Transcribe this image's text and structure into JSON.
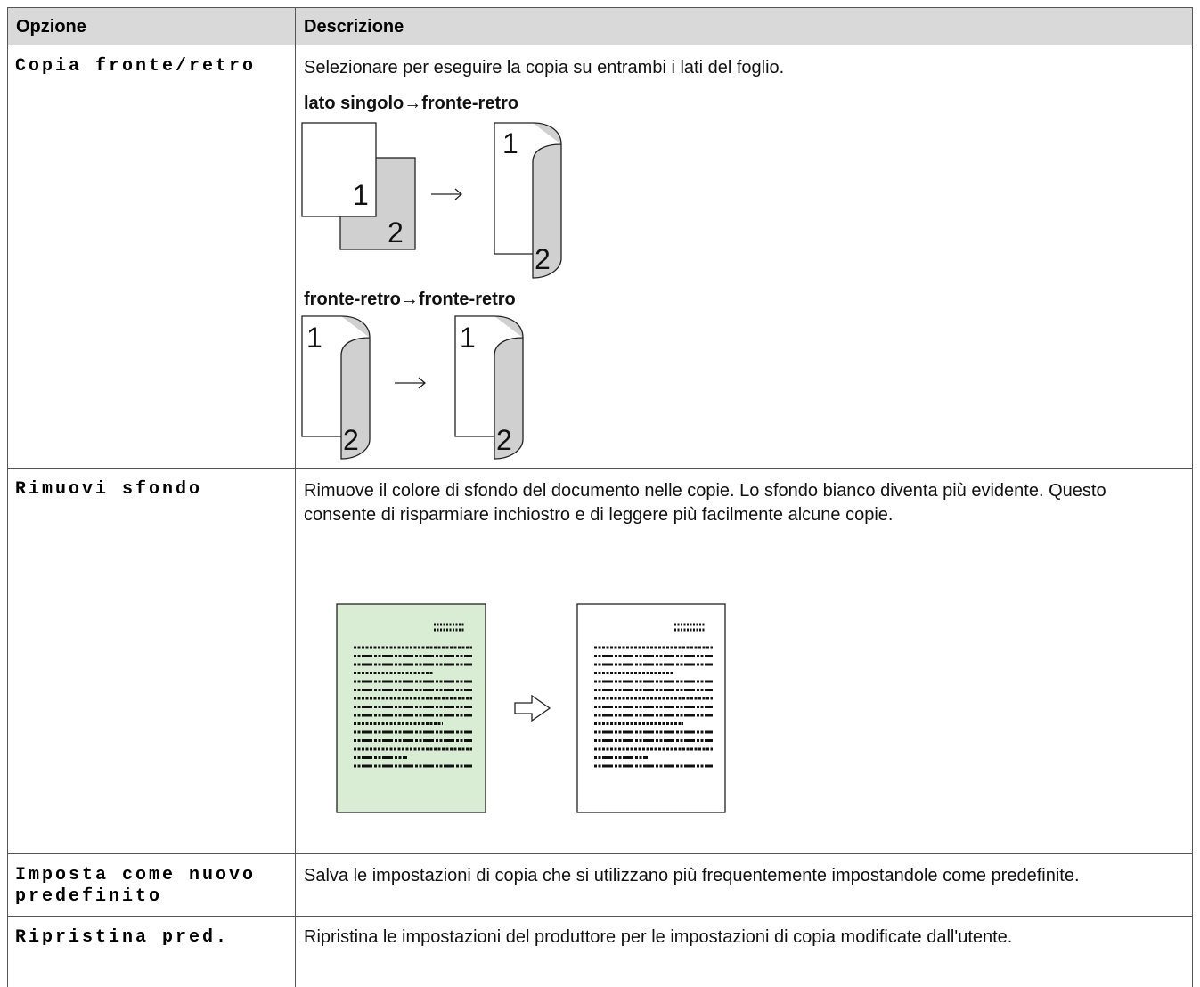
{
  "table": {
    "headers": [
      "Opzione",
      "Descrizione"
    ],
    "rows": [
      {
        "option": "Copia fronte/retro",
        "description": "Selezionare per eseguire la copia su entrambi i lati del foglio.",
        "subheadings": [
          "lato singolo→fronte-retro",
          "fronte-retro→fronte-retro"
        ]
      },
      {
        "option": "Rimuovi sfondo",
        "description": "Rimuove il colore di sfondo del documento nelle copie. Lo sfondo bianco diventa più evidente. Questo consente di risparmiare inchiostro e di leggere più facilmente alcune copie."
      },
      {
        "option": "Imposta come nuovo predefinito",
        "description": "Salva le impostazioni di copia che si utilizzano più frequentemente impostandole come predefinite."
      },
      {
        "option": "Ripristina pred.",
        "description": "Ripristina le impostazioni del produttore per le impostazioni di copia modificate dall'utente."
      }
    ]
  },
  "diagram_labels": [
    "1",
    "2"
  ]
}
